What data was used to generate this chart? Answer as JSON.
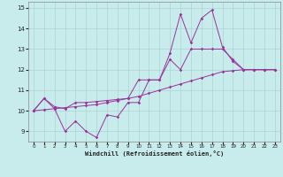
{
  "xlabel": "Windchill (Refroidissement éolien,°C)",
  "bg_color": "#c8ecec",
  "grid_color": "#aad4d4",
  "line_color": "#993399",
  "xlim": [
    -0.5,
    23.5
  ],
  "ylim": [
    8.5,
    15.3
  ],
  "xticks": [
    0,
    1,
    2,
    3,
    4,
    5,
    6,
    7,
    8,
    9,
    10,
    11,
    12,
    13,
    14,
    15,
    16,
    17,
    18,
    19,
    20,
    21,
    22,
    23
  ],
  "yticks": [
    9,
    10,
    11,
    12,
    13,
    14,
    15
  ],
  "line1_x": [
    0,
    1,
    2,
    3,
    4,
    5,
    6,
    7,
    8,
    9,
    10,
    11,
    12,
    13,
    14,
    15,
    16,
    17,
    18,
    19,
    20,
    21,
    22,
    23
  ],
  "line1_y": [
    10.0,
    10.6,
    10.1,
    9.0,
    9.5,
    9.0,
    8.7,
    9.8,
    9.7,
    10.4,
    10.4,
    11.5,
    11.5,
    12.8,
    14.7,
    13.3,
    14.5,
    14.9,
    13.1,
    12.4,
    12.0,
    12.0,
    12.0,
    12.0
  ],
  "line2_x": [
    0,
    1,
    2,
    3,
    4,
    5,
    6,
    7,
    8,
    9,
    10,
    11,
    12,
    13,
    14,
    15,
    16,
    17,
    18,
    19,
    20,
    21,
    22,
    23
  ],
  "line2_y": [
    10.0,
    10.6,
    10.2,
    10.1,
    10.4,
    10.4,
    10.45,
    10.5,
    10.55,
    10.6,
    11.5,
    11.5,
    11.5,
    12.5,
    12.0,
    13.0,
    13.0,
    13.0,
    13.0,
    12.5,
    12.0,
    12.0,
    12.0,
    12.0
  ],
  "line3_x": [
    0,
    1,
    2,
    3,
    4,
    5,
    6,
    7,
    8,
    9,
    10,
    11,
    12,
    13,
    14,
    15,
    16,
    17,
    18,
    19,
    20,
    21,
    22,
    23
  ],
  "line3_y": [
    10.0,
    10.05,
    10.1,
    10.15,
    10.2,
    10.25,
    10.3,
    10.4,
    10.5,
    10.6,
    10.7,
    10.85,
    11.0,
    11.15,
    11.3,
    11.45,
    11.6,
    11.75,
    11.9,
    11.95,
    12.0,
    12.0,
    12.0,
    12.0
  ]
}
